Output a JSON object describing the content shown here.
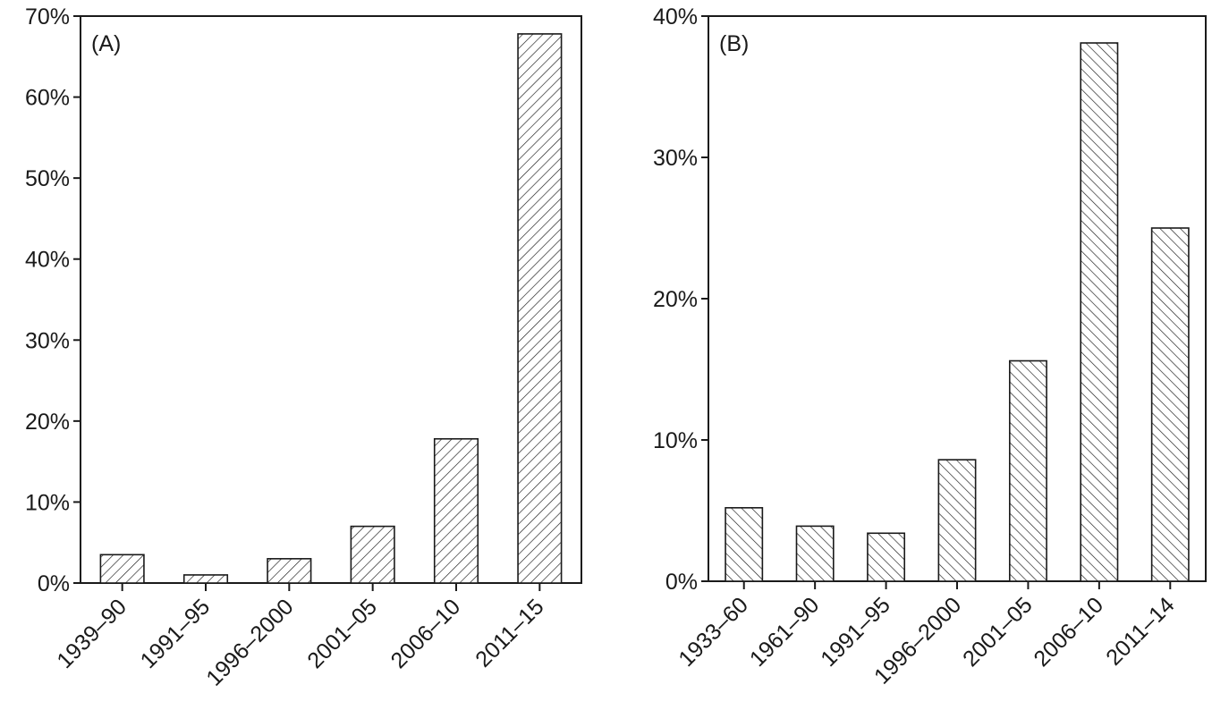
{
  "chart_data": [
    {
      "type": "bar",
      "panel_label": "(A)",
      "categories": [
        "1939–90",
        "1991–95",
        "1996–2000",
        "2001–05",
        "2006–10",
        "2011–15"
      ],
      "values": [
        3.5,
        1.0,
        3.0,
        7.0,
        17.8,
        67.8
      ],
      "ylim": [
        0,
        70
      ],
      "yticks": [
        0,
        10,
        20,
        30,
        40,
        50,
        60,
        70
      ],
      "ytick_labels": [
        "0%",
        "10%",
        "20%",
        "30%",
        "40%",
        "50%",
        "60%",
        "70%"
      ],
      "hatch": "forward-diagonal",
      "grid": false
    },
    {
      "type": "bar",
      "panel_label": "(B)",
      "categories": [
        "1933–60",
        "1961–90",
        "1991–95",
        "1996–2000",
        "2001–05",
        "2006–10",
        "2011–14"
      ],
      "values": [
        5.2,
        3.9,
        3.4,
        8.6,
        15.6,
        38.1,
        25.0
      ],
      "ylim": [
        0,
        40
      ],
      "yticks": [
        0,
        10,
        20,
        30,
        40
      ],
      "ytick_labels": [
        "0%",
        "10%",
        "20%",
        "30%",
        "40%"
      ],
      "hatch": "back-diagonal",
      "grid": false
    }
  ]
}
